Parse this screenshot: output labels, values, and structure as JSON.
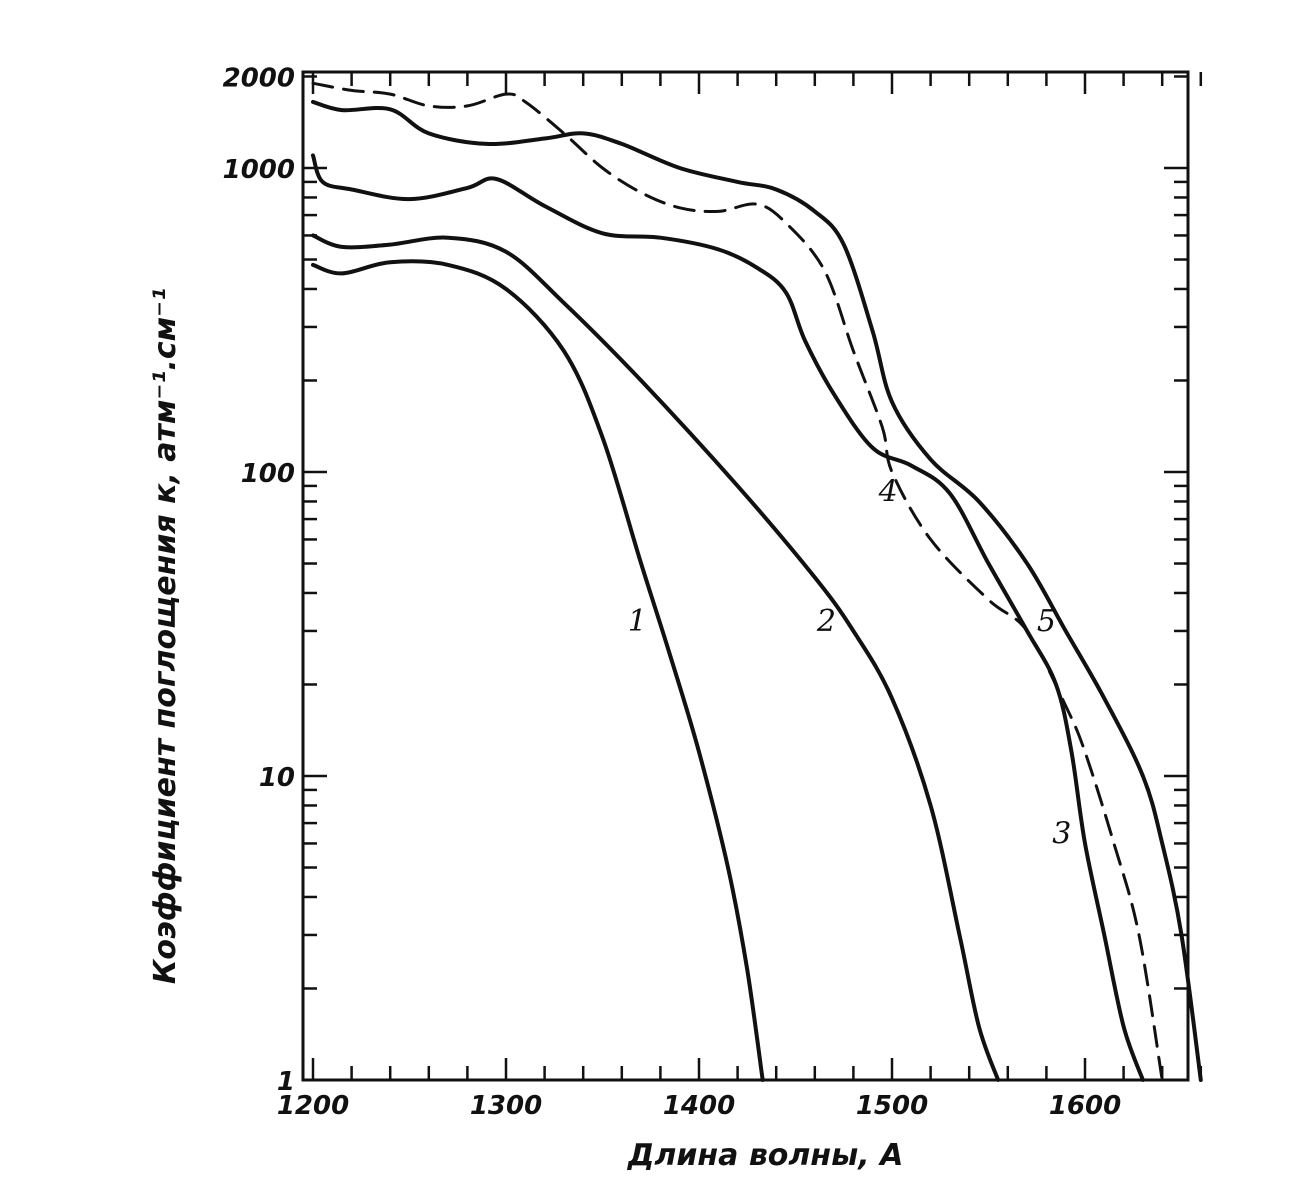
{
  "chart_data": {
    "type": "line",
    "title": "",
    "xlabel": "Длина волны, А",
    "ylabel": "Коэффициент поглощения к, атм⁻¹.см⁻¹",
    "xlim": [
      1200,
      1660
    ],
    "ylim": [
      1,
      2000
    ],
    "yscale": "log",
    "grid": false,
    "x_ticks": [
      1200,
      1300,
      1400,
      1500,
      1600
    ],
    "x_tick_labels": [
      "1200",
      "1300",
      "1400",
      "1500",
      "1600"
    ],
    "y_ticks": [
      1,
      10,
      100,
      1000,
      2000
    ],
    "y_tick_labels": [
      "1",
      "10",
      "100",
      "1000",
      "2000"
    ],
    "series": [
      {
        "name": "1",
        "label_at": [
          1368,
          30
        ],
        "dashed": false,
        "points": [
          [
            1200,
            480
          ],
          [
            1215,
            450
          ],
          [
            1240,
            490
          ],
          [
            1270,
            480
          ],
          [
            1300,
            400
          ],
          [
            1330,
            250
          ],
          [
            1350,
            130
          ],
          [
            1370,
            50
          ],
          [
            1385,
            25
          ],
          [
            1400,
            12
          ],
          [
            1415,
            5
          ],
          [
            1425,
            2.3
          ],
          [
            1433,
            1
          ]
        ]
      },
      {
        "name": "2",
        "label_at": [
          1466,
          30
        ],
        "dashed": false,
        "points": [
          [
            1200,
            600
          ],
          [
            1215,
            550
          ],
          [
            1240,
            560
          ],
          [
            1270,
            590
          ],
          [
            1300,
            530
          ],
          [
            1330,
            360
          ],
          [
            1370,
            200
          ],
          [
            1420,
            90
          ],
          [
            1460,
            45
          ],
          [
            1480,
            30
          ],
          [
            1500,
            18
          ],
          [
            1520,
            8
          ],
          [
            1535,
            3
          ],
          [
            1545,
            1.5
          ],
          [
            1555,
            1
          ]
        ]
      },
      {
        "name": "3",
        "label_at": [
          1588,
          6
        ],
        "dashed": false,
        "points": [
          [
            1200,
            1100
          ],
          [
            1205,
            900
          ],
          [
            1220,
            850
          ],
          [
            1250,
            790
          ],
          [
            1280,
            860
          ],
          [
            1295,
            920
          ],
          [
            1320,
            750
          ],
          [
            1350,
            610
          ],
          [
            1380,
            590
          ],
          [
            1410,
            540
          ],
          [
            1430,
            470
          ],
          [
            1445,
            390
          ],
          [
            1455,
            270
          ],
          [
            1470,
            180
          ],
          [
            1490,
            120
          ],
          [
            1510,
            105
          ],
          [
            1530,
            85
          ],
          [
            1550,
            50
          ],
          [
            1570,
            30
          ],
          [
            1585,
            20
          ],
          [
            1593,
            12
          ],
          [
            1600,
            6
          ],
          [
            1610,
            3
          ],
          [
            1620,
            1.5
          ],
          [
            1630,
            1
          ]
        ]
      },
      {
        "name": "4",
        "label_at": [
          1498,
          80
        ],
        "dashed": true,
        "points": [
          [
            1200,
            1900
          ],
          [
            1220,
            1800
          ],
          [
            1240,
            1750
          ],
          [
            1260,
            1600
          ],
          [
            1280,
            1600
          ],
          [
            1300,
            1750
          ],
          [
            1310,
            1650
          ],
          [
            1330,
            1300
          ],
          [
            1350,
            1000
          ],
          [
            1370,
            830
          ],
          [
            1390,
            740
          ],
          [
            1410,
            720
          ],
          [
            1430,
            760
          ],
          [
            1445,
            660
          ],
          [
            1465,
            460
          ],
          [
            1480,
            250
          ],
          [
            1495,
            140
          ],
          [
            1500,
            100
          ],
          [
            1520,
            60
          ],
          [
            1550,
            38
          ],
          [
            1570,
            30
          ],
          [
            1590,
            17
          ],
          [
            1600,
            12
          ],
          [
            1615,
            6
          ],
          [
            1628,
            3
          ],
          [
            1640,
            1
          ]
        ]
      },
      {
        "name": "5",
        "label_at": [
          1580,
          30
        ],
        "dashed": false,
        "points": [
          [
            1200,
            1650
          ],
          [
            1215,
            1550
          ],
          [
            1240,
            1560
          ],
          [
            1260,
            1300
          ],
          [
            1290,
            1200
          ],
          [
            1320,
            1250
          ],
          [
            1340,
            1300
          ],
          [
            1360,
            1200
          ],
          [
            1390,
            1000
          ],
          [
            1420,
            900
          ],
          [
            1440,
            850
          ],
          [
            1460,
            720
          ],
          [
            1475,
            560
          ],
          [
            1490,
            290
          ],
          [
            1500,
            170
          ],
          [
            1520,
            110
          ],
          [
            1545,
            80
          ],
          [
            1570,
            50
          ],
          [
            1590,
            30
          ],
          [
            1610,
            18
          ],
          [
            1630,
            10
          ],
          [
            1640,
            6
          ],
          [
            1650,
            3
          ],
          [
            1660,
            1
          ]
        ]
      }
    ]
  }
}
